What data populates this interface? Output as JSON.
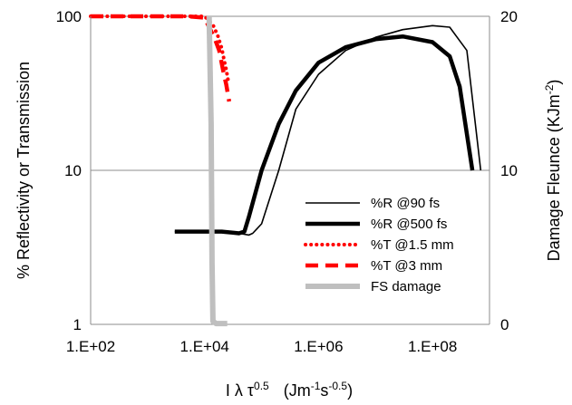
{
  "chart_data": {
    "type": "line",
    "x_scale": "log",
    "y_scale": "log",
    "xlim": [
      100,
      1000000000
    ],
    "ylim": [
      1,
      100
    ],
    "y2lim": [
      0,
      20
    ],
    "grid": "horizontal",
    "legend_position": "lower-right",
    "x_ticks": [
      "1.E+02",
      "1.E+04",
      "1.E+06",
      "1.E+08"
    ],
    "y_ticks": [
      "1",
      "10",
      "100"
    ],
    "y2_ticks": [
      "0",
      "10",
      "20"
    ],
    "xlabel": "I λ τ",
    "xlabel_sup": "0.5",
    "xlabel_units": "(Jm",
    "xlabel_units_sup1": "-1",
    "xlabel_units_mid": "s",
    "xlabel_units_sup2": "-0.5",
    "xlabel_units_end": ")",
    "ylabel": "% Reflectivity or Transmission",
    "y2label": "Damage Fleunce  (KJm",
    "y2label_sup": "-2",
    "y2label_end": ")",
    "series": [
      {
        "name": "%R @90 fs",
        "color": "#000000",
        "style": "thin",
        "x": [
          3000,
          20000,
          40000,
          60000,
          70000,
          100000,
          200000,
          400000,
          1000000,
          3000000,
          10000000,
          30000000,
          100000000,
          200000000,
          400000000,
          700000000
        ],
        "y": [
          4,
          4,
          3.9,
          3.8,
          3.9,
          4.5,
          10,
          25,
          42,
          60,
          73,
          82,
          87,
          85,
          60,
          10
        ]
      },
      {
        "name": "%R @500 fs",
        "color": "#000000",
        "style": "thick",
        "x": [
          3000,
          20000,
          40000,
          50000,
          60000,
          100000,
          200000,
          400000,
          1000000,
          3000000,
          10000000,
          30000000,
          100000000,
          200000000,
          300000000,
          500000000
        ],
        "y": [
          4,
          4,
          3.9,
          4,
          5,
          10,
          20,
          33,
          50,
          63,
          71,
          74,
          68,
          55,
          35,
          10
        ]
      },
      {
        "name": "%T @1.5 mm",
        "color": "#ff0000",
        "style": "dotted",
        "x": [
          100,
          5000,
          10000,
          14000,
          17000,
          20000,
          22000,
          24000,
          26000
        ],
        "y": [
          100,
          100,
          100,
          88,
          75,
          62,
          52,
          45,
          38
        ]
      },
      {
        "name": "%T @3 mm",
        "color": "#ff0000",
        "style": "dashed",
        "x": [
          100,
          5000,
          10000,
          12000,
          15000,
          18000,
          21000,
          24000,
          27000
        ],
        "y": [
          100,
          100,
          98,
          85,
          72,
          60,
          45,
          36,
          28
        ]
      },
      {
        "name": "FS damage",
        "color": "#bfbfbf",
        "style": "thick",
        "axis": "secondary",
        "x": [
          12000,
          13000,
          13500,
          14000,
          16000,
          25000
        ],
        "y": [
          20,
          13,
          4,
          0.2,
          0.05,
          0.05
        ]
      }
    ]
  }
}
